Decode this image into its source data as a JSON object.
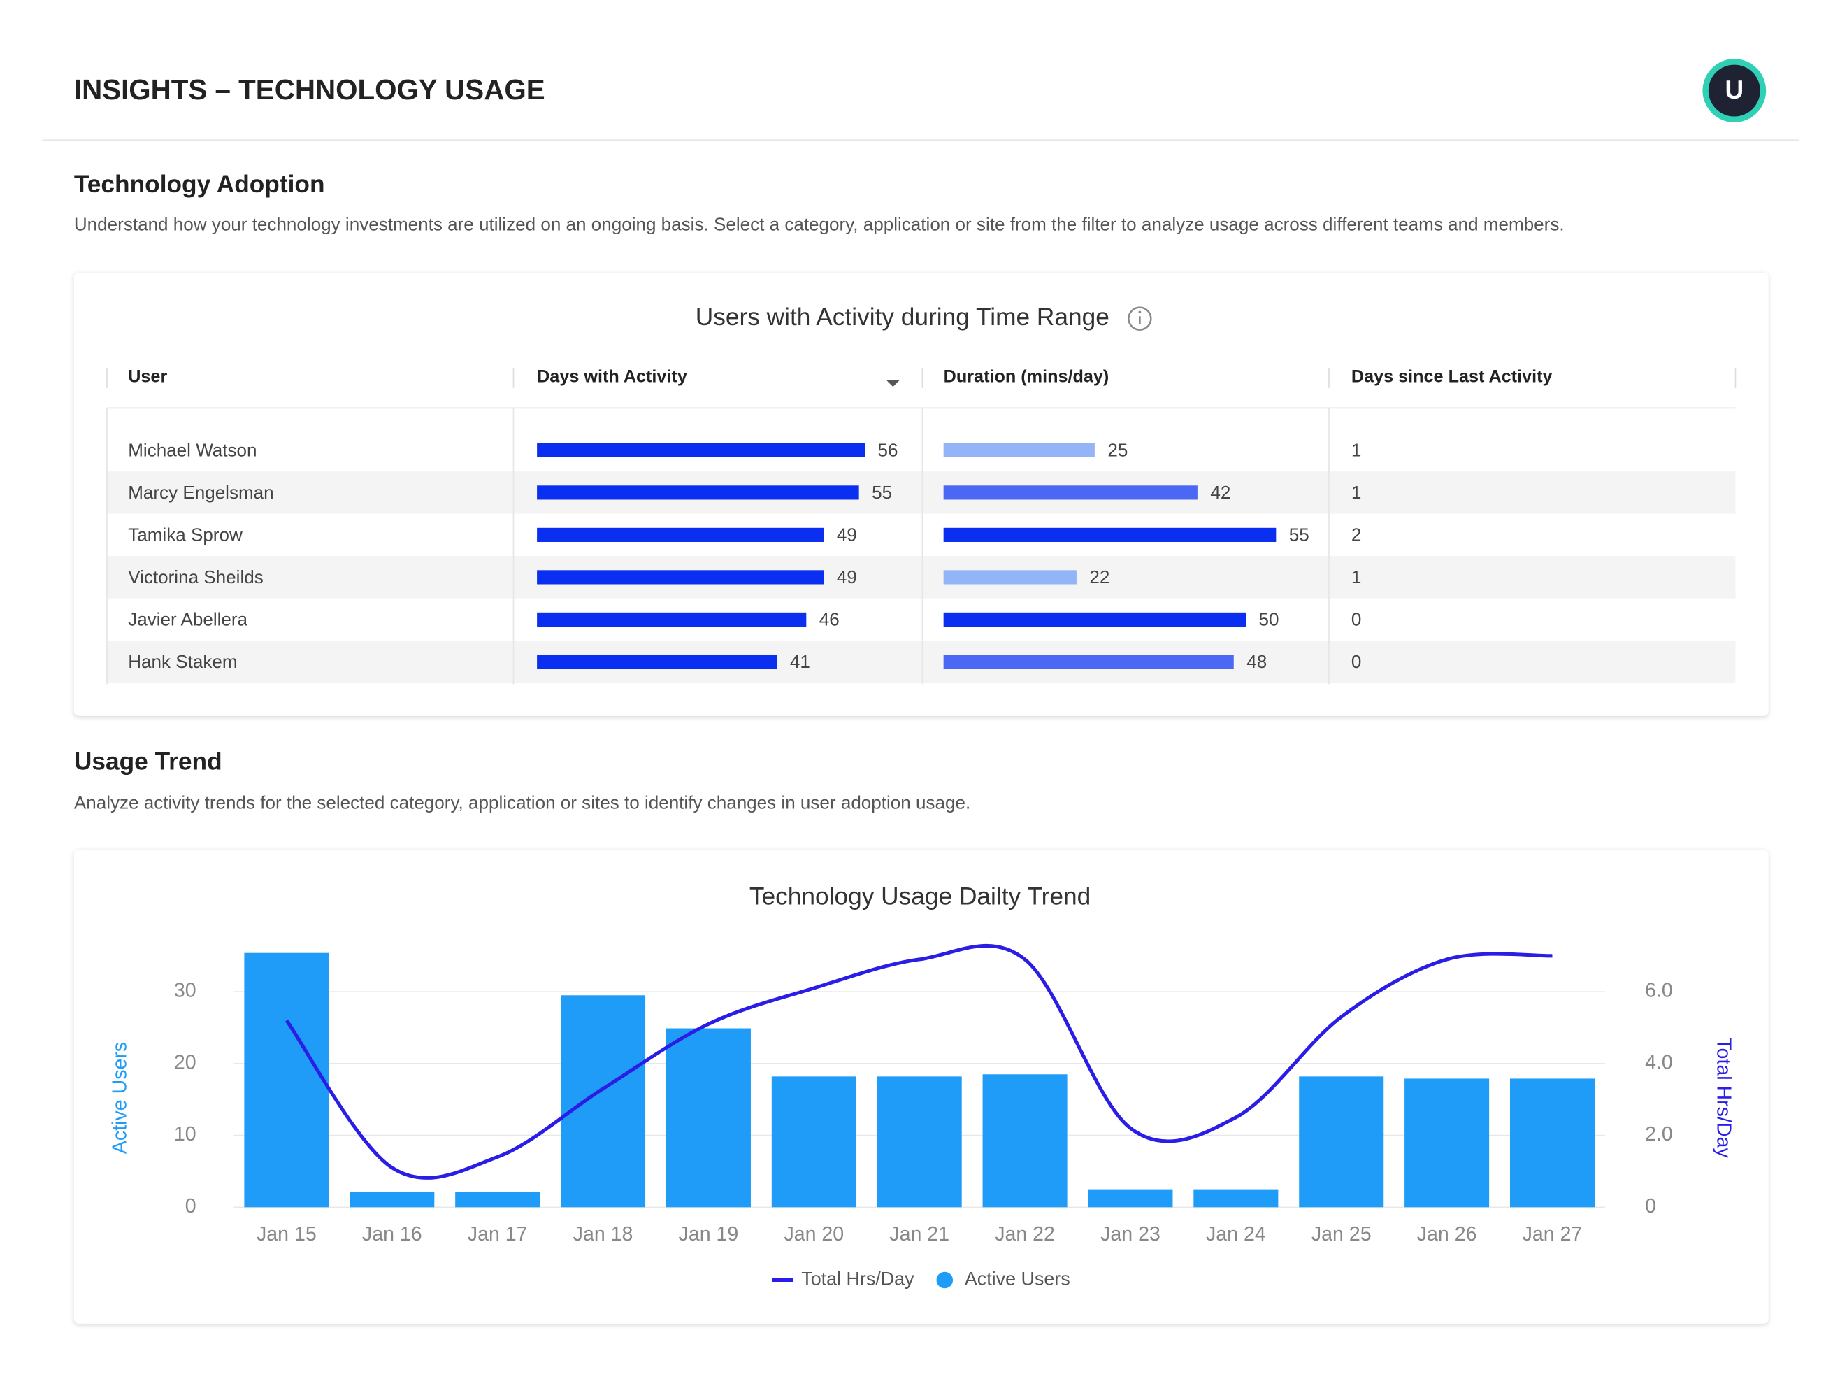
{
  "header": {
    "title": "INSIGHTS – TECHNOLOGY USAGE",
    "avatar": "U"
  },
  "adoption": {
    "title": "Technology Adoption",
    "description": "Understand how your technology investments are utilized on an ongoing basis. Select a category, application or site from the filter to analyze usage across different teams and members."
  },
  "table": {
    "title": "Users with Activity during Time Range",
    "columns": [
      "User",
      "Days with Activity",
      "Duration (mins/day)",
      "Days since Last Activity"
    ],
    "days_color": "#0a2ff0",
    "rows": [
      {
        "name": "Michael Watson",
        "days": 56,
        "duration": 25,
        "duration_color": "#94b4f8",
        "last": 1
      },
      {
        "name": "Marcy Engelsman",
        "days": 55,
        "duration": 42,
        "duration_color": "#4a68f4",
        "last": 1
      },
      {
        "name": "Tamika Sprow",
        "days": 49,
        "duration": 55,
        "duration_color": "#0a2ff0",
        "last": 2
      },
      {
        "name": "Victorina Sheilds",
        "days": 49,
        "duration": 22,
        "duration_color": "#94b4f8",
        "last": 1
      },
      {
        "name": "Javier Abellera",
        "days": 46,
        "duration": 50,
        "duration_color": "#0a2ff0",
        "last": 0
      },
      {
        "name": "Hank Stakem",
        "days": 41,
        "duration": 48,
        "duration_color": "#4a68f4",
        "last": 0
      }
    ]
  },
  "trend": {
    "title": "Usage Trend",
    "description": "Analyze activity trends for the selected category, application or sites to identify changes in user adoption usage."
  },
  "chart_data": {
    "type": "combo",
    "title": "Technology Usage Dailty Trend",
    "categories": [
      "Jan 15",
      "Jan 16",
      "Jan 17",
      "Jan 18",
      "Jan 19",
      "Jan 20",
      "Jan 21",
      "Jan 22",
      "Jan 23",
      "Jan 24",
      "Jan 25",
      "Jan 26",
      "Jan 27"
    ],
    "series": [
      {
        "name": "Total Hrs/Day",
        "type": "line",
        "axis": "y2",
        "color": "#2a1ee6",
        "values": [
          5.2,
          1.1,
          1.4,
          3.3,
          5.1,
          6.1,
          6.9,
          6.9,
          2.2,
          2.5,
          5.3,
          6.9,
          7.0
        ]
      },
      {
        "name": "Active Users",
        "type": "bar",
        "axis": "y",
        "color": "#1f9cf7",
        "values": [
          35.4,
          2.1,
          2.1,
          29.5,
          24.9,
          18.2,
          18.2,
          18.5,
          2.5,
          2.5,
          18.2,
          17.9,
          17.9
        ]
      }
    ],
    "ylabel": "Active Users",
    "y2label": "Total Hrs/Day",
    "ylim": [
      0,
      36
    ],
    "yticks": [
      0,
      10,
      20,
      30
    ],
    "y2lim": [
      0,
      7.2
    ],
    "y2ticks": [
      0,
      {
        "value": 2,
        "label": "2.0"
      },
      {
        "value": 4,
        "label": "4.0"
      },
      {
        "value": 6,
        "label": "6.0"
      }
    ],
    "grid": true
  }
}
